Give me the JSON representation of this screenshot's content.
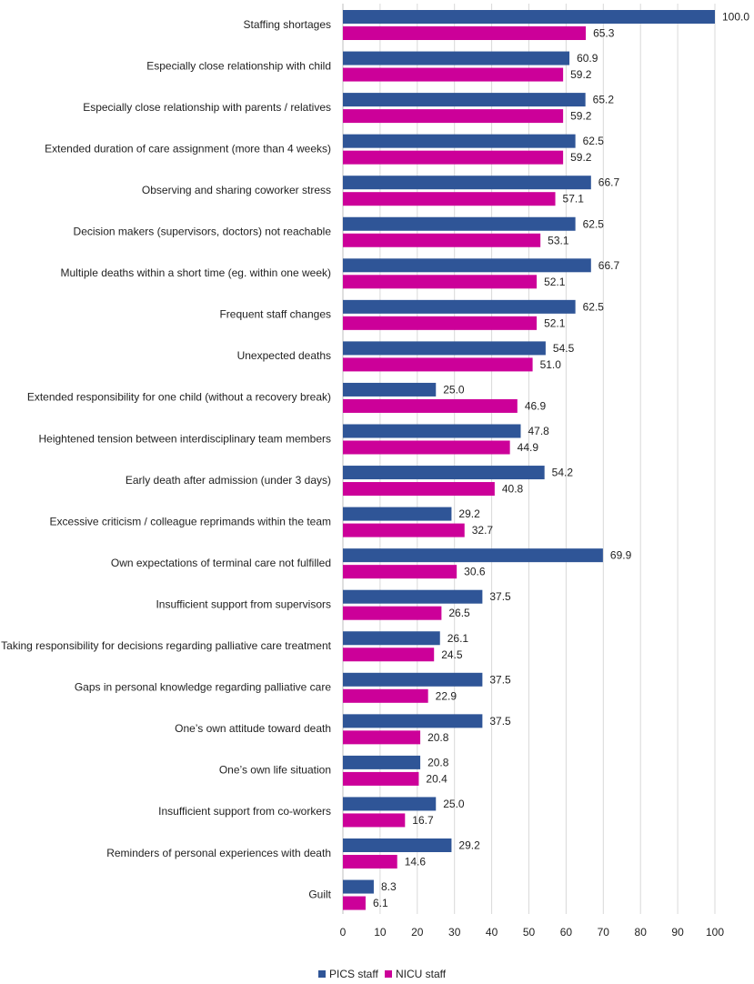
{
  "chart_data": {
    "type": "bar",
    "orientation": "horizontal",
    "categories": [
      "Staffing shortages",
      "Especially close relationship with child",
      "Especially close relationship with parents / relatives",
      "Extended duration of care assignment (more than 4 weeks)",
      "Observing and sharing coworker stress",
      "Decision makers (supervisors, doctors) not reachable",
      "Multiple deaths within a short time (eg. within one week)",
      "Frequent staff changes",
      "Unexpected deaths",
      "Extended responsibility for one child (without a recovery break)",
      "Heightened tension between interdisciplinary team members",
      "Early death after admission (under 3 days)",
      "Excessive criticism / colleague reprimands within the team",
      "Own expectations of terminal care not fulfilled",
      "Insufficient support from supervisors",
      "Taking responsibility for decisions regarding palliative care treatment",
      "Gaps in personal knowledge regarding palliative care",
      "One’s own attitude toward death",
      "One’s own life situation",
      "Insufficient support from co-workers",
      "Reminders of personal experiences with death",
      "Guilt"
    ],
    "series": [
      {
        "name": "PICS staff",
        "color": "#2f5597",
        "values": [
          100.0,
          60.9,
          65.2,
          62.5,
          66.7,
          62.5,
          66.7,
          62.5,
          54.5,
          25.0,
          47.8,
          54.2,
          29.2,
          69.9,
          37.5,
          26.1,
          37.5,
          37.5,
          20.8,
          25.0,
          29.2,
          8.3
        ],
        "labels": [
          "100.0",
          "60.9",
          "65.2",
          "62.5",
          "66.7",
          "62.5",
          "66.7",
          "62.5",
          "54.5",
          "25.0",
          "47.8",
          "54.2",
          "29.2",
          "69.9",
          "37.5",
          "26.1",
          "37.5",
          "37.5",
          "20.8",
          "25.0",
          "29.2",
          "8.3"
        ]
      },
      {
        "name": "NICU staff",
        "color": "#cc0099",
        "values": [
          65.3,
          59.2,
          59.2,
          59.2,
          57.1,
          53.1,
          52.1,
          52.1,
          51.0,
          46.9,
          44.9,
          40.8,
          32.7,
          30.6,
          26.5,
          24.5,
          22.9,
          20.8,
          20.4,
          16.7,
          14.6,
          6.1
        ],
        "labels": [
          "65.3",
          "59.2",
          "59.2",
          "59.2",
          "57.1",
          "53.1",
          "52.1",
          "52.1",
          "51.0",
          "46.9",
          "44.9",
          "40.8",
          "32.7",
          "30.6",
          "26.5",
          "24.5",
          "22.9",
          "20.8",
          "20.4",
          "16.7",
          "14.6",
          "6.1"
        ]
      }
    ],
    "xlim": [
      0,
      100
    ],
    "xticks": [
      "0",
      "10",
      "20",
      "30",
      "40",
      "50",
      "60",
      "70",
      "80",
      "90",
      "100"
    ],
    "grid": "vertical",
    "legend": "bottom-center",
    "title": "",
    "xlabel": "",
    "ylabel": ""
  }
}
